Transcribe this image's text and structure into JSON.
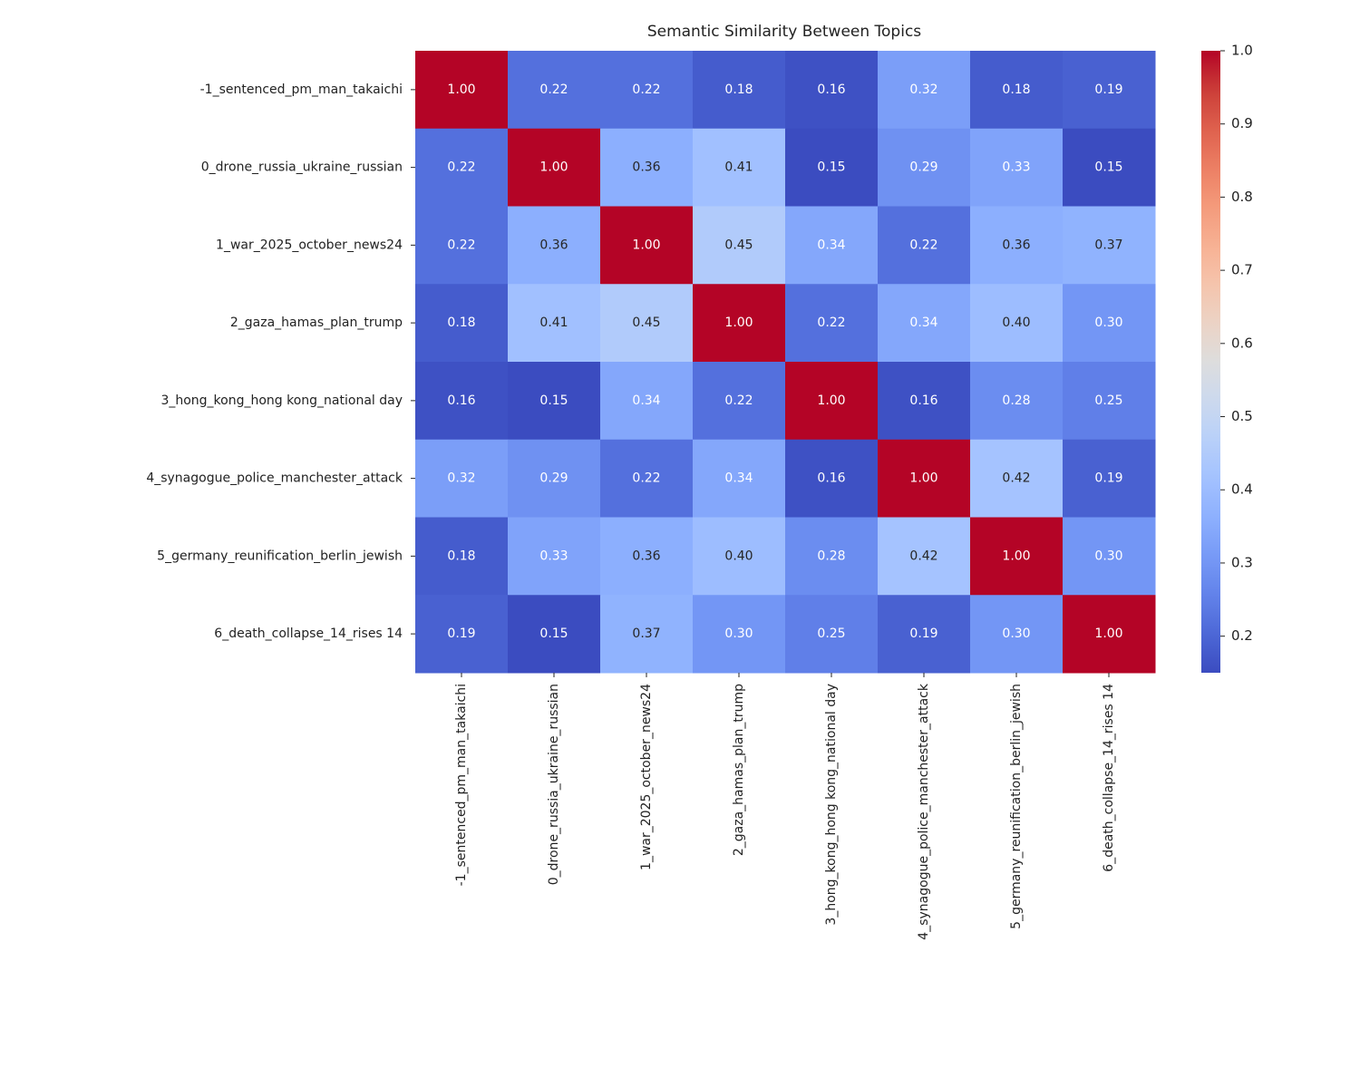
{
  "chart_data": {
    "type": "heatmap",
    "title": "Semantic Similarity Between Topics",
    "x_categories": [
      "-1_sentenced_pm_man_takaichi",
      "0_drone_russia_ukraine_russian",
      "1_war_2025_october_news24",
      "2_gaza_hamas_plan_trump",
      "3_hong_kong_hong kong_national day",
      "4_synagogue_police_manchester_attack",
      "5_germany_reunification_berlin_jewish",
      "6_death_collapse_14_rises 14"
    ],
    "y_categories": [
      "-1_sentenced_pm_man_takaichi",
      "0_drone_russia_ukraine_russian",
      "1_war_2025_october_news24",
      "2_gaza_hamas_plan_trump",
      "3_hong_kong_hong kong_national day",
      "4_synagogue_police_manchester_attack",
      "5_germany_reunification_berlin_jewish",
      "6_death_collapse_14_rises 14"
    ],
    "values": [
      [
        1,
        0.22,
        0.22,
        0.18,
        0.16,
        0.32,
        0.18,
        0.19
      ],
      [
        0.22,
        1,
        0.36,
        0.41,
        0.15,
        0.29,
        0.33,
        0.15
      ],
      [
        0.22,
        0.36,
        1,
        0.45,
        0.34,
        0.22,
        0.36,
        0.37
      ],
      [
        0.18,
        0.41,
        0.45,
        1,
        0.22,
        0.34,
        0.4,
        0.3
      ],
      [
        0.16,
        0.15,
        0.34,
        0.22,
        1,
        0.16,
        0.28,
        0.25
      ],
      [
        0.32,
        0.29,
        0.22,
        0.34,
        0.16,
        1,
        0.42,
        0.19
      ],
      [
        0.18,
        0.33,
        0.36,
        0.4,
        0.28,
        0.42,
        1,
        0.3
      ],
      [
        0.19,
        0.15,
        0.37,
        0.3,
        0.25,
        0.19,
        0.3,
        1
      ]
    ],
    "value_labels": [
      [
        "1.00",
        "0.22",
        "0.22",
        "0.18",
        "0.16",
        "0.32",
        "0.18",
        "0.19"
      ],
      [
        "0.22",
        "1.00",
        "0.36",
        "0.41",
        "0.15",
        "0.29",
        "0.33",
        "0.15"
      ],
      [
        "0.22",
        "0.36",
        "1.00",
        "0.45",
        "0.34",
        "0.22",
        "0.36",
        "0.37"
      ],
      [
        "0.18",
        "0.41",
        "0.45",
        "1.00",
        "0.22",
        "0.34",
        "0.40",
        "0.30"
      ],
      [
        "0.16",
        "0.15",
        "0.34",
        "0.22",
        "1.00",
        "0.16",
        "0.28",
        "0.25"
      ],
      [
        "0.32",
        "0.29",
        "0.22",
        "0.34",
        "0.16",
        "1.00",
        "0.42",
        "0.19"
      ],
      [
        "0.18",
        "0.33",
        "0.36",
        "0.40",
        "0.28",
        "0.42",
        "1.00",
        "0.30"
      ],
      [
        "0.19",
        "0.15",
        "0.37",
        "0.30",
        "0.25",
        "0.19",
        "0.30",
        "1.00"
      ]
    ],
    "colormap": "coolwarm",
    "clim": [
      0.15,
      1
    ],
    "cticks": [
      0.2,
      0.3,
      0.4,
      0.5,
      0.6,
      0.7,
      0.8,
      0.9,
      {
        "value": 1,
        "label": "1.0"
      }
    ]
  }
}
